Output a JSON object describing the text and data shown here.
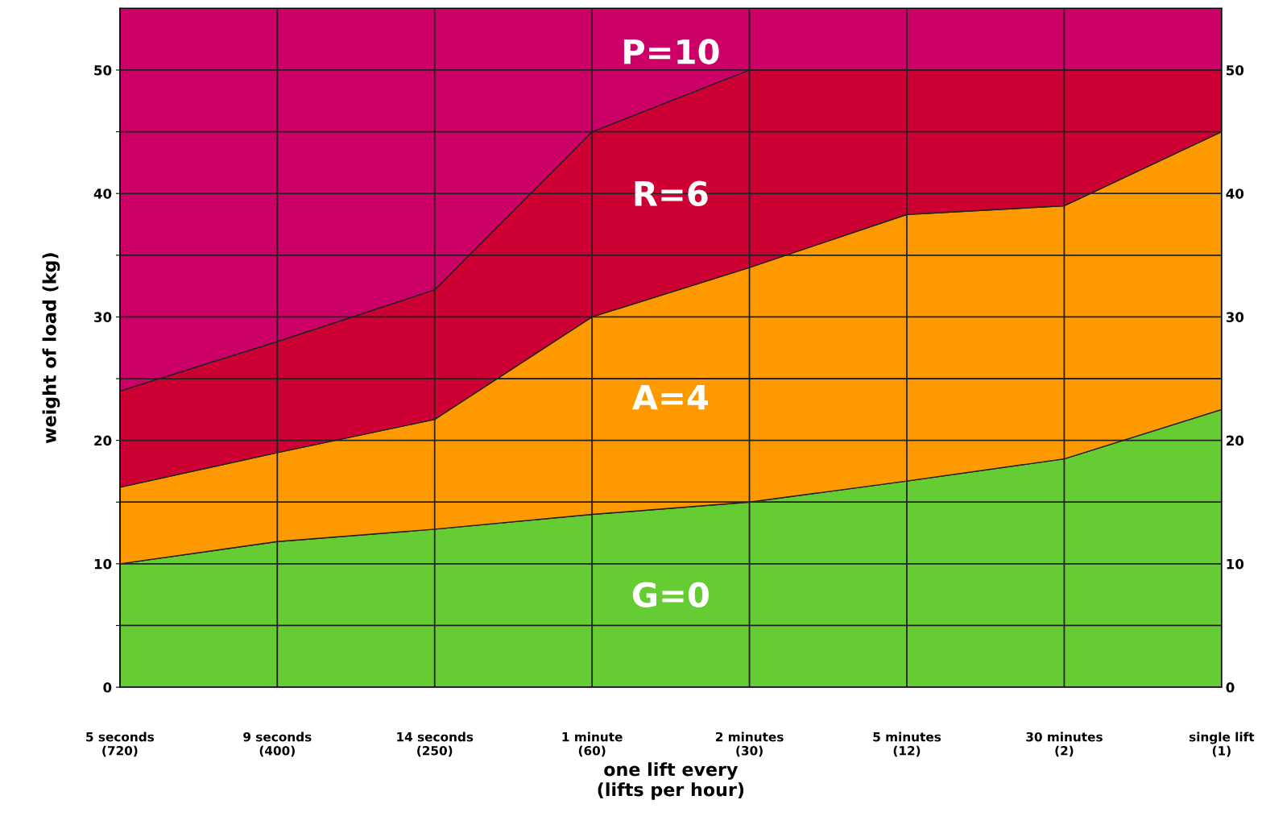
{
  "chart_data": {
    "type": "area",
    "stacked": true,
    "xlabel": "one lift every\n(lifts per hour)",
    "ylabel": "weight of load (kg)",
    "categories": [
      "5 seconds\n(720)",
      "9 seconds\n(400)",
      "14 seconds\n(250)",
      "1 minute\n(60)",
      "2 minutes\n(30)",
      "5 minutes\n(12)",
      "30 minutes\n(2)",
      "single lift\n(1)"
    ],
    "series": [
      {
        "name": "G=0",
        "color": "#66cc33",
        "values": [
          10,
          11.8,
          12.8,
          14,
          15,
          16.7,
          18.5,
          22.5
        ]
      },
      {
        "name": "A=4",
        "color": "#ff9900",
        "values": [
          6.2,
          7.2,
          8.9,
          16,
          19,
          21.6,
          20.5,
          22.5
        ]
      },
      {
        "name": "R=6",
        "color": "#cc0033",
        "values": [
          7.8,
          9,
          10.5,
          15,
          16,
          11.7,
          11,
          5
        ]
      },
      {
        "name": "P=10",
        "color": "#cc0066",
        "values": [
          31,
          27,
          22.8,
          10,
          5,
          5,
          5,
          5
        ]
      }
    ],
    "ylim": [
      0,
      55
    ],
    "yticks": [
      0,
      {
        "value": 5,
        "label": null
      },
      10,
      {
        "value": 15,
        "label": null
      },
      20,
      {
        "value": 25,
        "label": null
      },
      30,
      {
        "value": 35,
        "label": null
      },
      40,
      {
        "value": 45,
        "label": null
      },
      50
    ],
    "y2lim": [
      0,
      55
    ],
    "y2ticks": [
      0,
      10,
      20,
      30,
      40,
      50
    ],
    "grid": true,
    "legend": false
  }
}
